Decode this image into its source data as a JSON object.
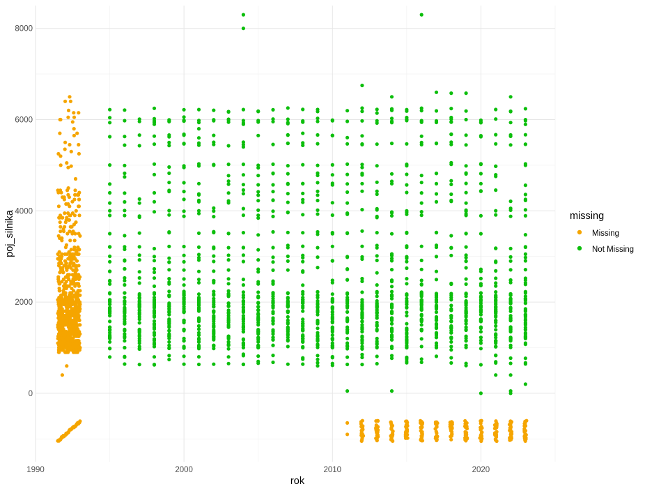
{
  "chart_data": {
    "type": "scatter",
    "xlabel": "rok",
    "ylabel": "poj_silnika",
    "xlim": [
      1990,
      2025
    ],
    "ylim": [
      -1500,
      8500
    ],
    "xticks": [
      1990,
      2000,
      2010,
      2020
    ],
    "yticks": [
      0,
      2000,
      4000,
      6000,
      8000
    ],
    "grid": true,
    "legend": {
      "title": "missing",
      "placement": "right",
      "entries": [
        {
          "label": "Missing",
          "color": "#F5A500"
        },
        {
          "label": "Not Missing",
          "color": "#0CBE0C"
        }
      ]
    },
    "series": [
      {
        "name": "Missing",
        "color": "#F5A500",
        "clusters": [
          {
            "x": [
              1991.5,
              1993
            ],
            "y": [
              -1050,
              -620
            ],
            "pattern": "diagonal"
          },
          {
            "x": [
              1991.5,
              1993
            ],
            "y": [
              900,
              2100
            ],
            "pattern": "dense"
          },
          {
            "x": [
              1991.5,
              1993
            ],
            "y": [
              2100,
              3100
            ],
            "pattern": "medium"
          },
          {
            "x": [
              1991.5,
              1993
            ],
            "y": [
              3100,
              4500
            ],
            "pattern": "sparse"
          },
          {
            "x": [
              1991.5,
              1993
            ],
            "y": [
              4500,
              6500
            ],
            "pattern": "very-sparse"
          }
        ],
        "points": [
          [
            1991.8,
            400
          ],
          [
            1992.1,
            600
          ],
          [
            1992.3,
            6500
          ],
          [
            1992.0,
            6400
          ],
          [
            1992.9,
            6150
          ],
          [
            1992.2,
            6050
          ],
          [
            1992.5,
            5950
          ],
          [
            1992.8,
            5700
          ],
          [
            1992.6,
            5650
          ],
          [
            1992.0,
            5500
          ],
          [
            1992.3,
            5450
          ],
          [
            1992.9,
            5450
          ],
          [
            1991.7,
            5000
          ],
          [
            1992.2,
            4950
          ],
          [
            1992.4,
            4980
          ],
          [
            1992.7,
            4700
          ],
          [
            2011,
            -650
          ],
          [
            2011,
            -900
          ]
        ],
        "years": [
          2012,
          2013,
          2014,
          2015,
          2016,
          2017,
          2018,
          2019,
          2020,
          2021,
          2022,
          2023
        ],
        "year_band": [
          -1050,
          -600
        ]
      },
      {
        "name": "Not Missing",
        "color": "#0CBE0C",
        "years": [
          1995,
          1996,
          1997,
          1998,
          1999,
          2000,
          2001,
          2002,
          2003,
          2004,
          2005,
          2006,
          2007,
          2008,
          2009,
          2010,
          2011,
          2012,
          2013,
          2014,
          2015,
          2016,
          2017,
          2018,
          2019,
          2020,
          2021,
          2022,
          2023
        ],
        "dense_band": [
          1000,
          2200
        ],
        "common_values": [
          650,
          800,
          1000,
          1200,
          1400,
          1600,
          1800,
          1900,
          2000,
          2200,
          2400,
          2500,
          2700,
          2900,
          3000,
          3200,
          3500,
          3900,
          4000,
          4200,
          4400,
          4600,
          4800,
          5000,
          5450,
          5650,
          5950,
          6000,
          6200
        ],
        "points": [
          [
            2004,
            8300
          ],
          [
            2004,
            8000
          ],
          [
            2016,
            8300
          ],
          [
            2012,
            6750
          ],
          [
            2017,
            6600
          ],
          [
            2018,
            6580
          ],
          [
            2019,
            6580
          ],
          [
            2022,
            6500
          ],
          [
            2016,
            6250
          ],
          [
            2014,
            6500
          ],
          [
            2011,
            50
          ],
          [
            2014,
            50
          ],
          [
            2020,
            0
          ],
          [
            2021,
            400
          ],
          [
            2022,
            400
          ],
          [
            2022,
            50
          ],
          [
            2022,
            0
          ],
          [
            2023,
            200
          ],
          [
            2001,
            5800
          ],
          [
            2004,
            5400
          ],
          [
            2008,
            5700
          ]
        ]
      }
    ]
  }
}
